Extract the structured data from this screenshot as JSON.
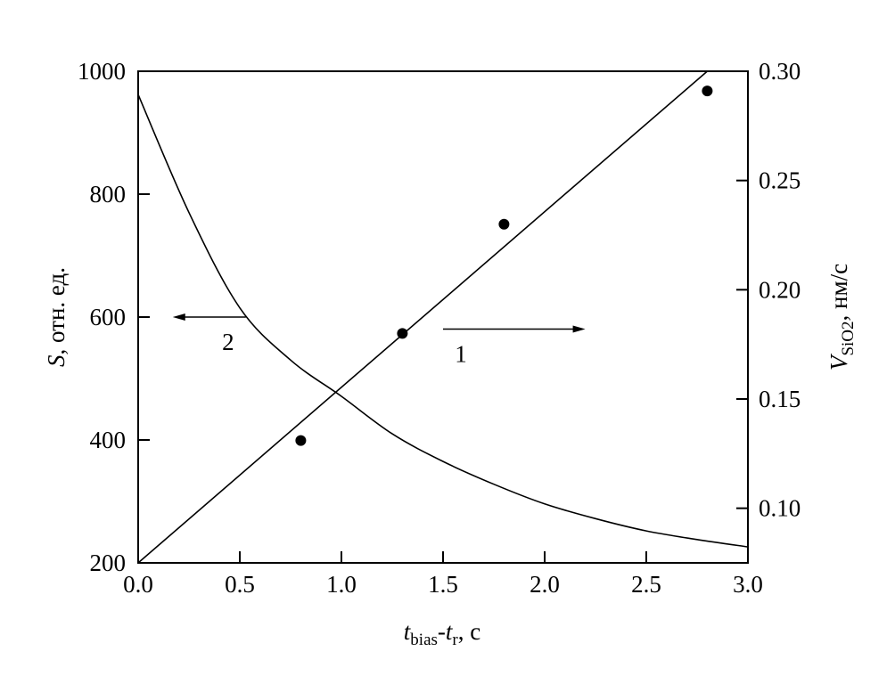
{
  "chart_data": {
    "type": "line",
    "xlabel": {
      "main": "t",
      "sub": "bias",
      "mid": "-t",
      "sub2": "r",
      "unit": ", с"
    },
    "ylabel_left": {
      "main": "S",
      "unit": ", отн. ед."
    },
    "ylabel_right": {
      "main": "V",
      "sub": "SiO2",
      "unit": ", нм/с"
    },
    "xlim": [
      0.0,
      3.0
    ],
    "ylim_left": [
      200,
      1000
    ],
    "ylim_right": [
      0.075,
      0.3
    ],
    "x_ticks": [
      "0.0",
      "0.5",
      "1.0",
      "1.5",
      "2.0",
      "2.5",
      "3.0"
    ],
    "y_left_ticks": [
      "200",
      "400",
      "600",
      "800",
      "1000"
    ],
    "y_right_ticks": [
      "0.10",
      "0.15",
      "0.20",
      "0.25",
      "0.30"
    ],
    "grid": false,
    "series": [
      {
        "name": "1",
        "axis": "right",
        "points": {
          "x": [
            0.8,
            1.3,
            1.8,
            2.8
          ],
          "y": [
            0.131,
            0.18,
            0.23,
            0.291
          ]
        },
        "fit_line": {
          "x": [
            0.0,
            2.8
          ],
          "y": [
            0.075,
            0.3
          ]
        }
      },
      {
        "name": "2",
        "axis": "left",
        "curve": {
          "x": [
            0.0,
            0.25,
            0.5,
            0.75,
            1.0,
            1.25,
            1.5,
            1.75,
            2.0,
            2.25,
            2.5,
            2.75,
            3.0
          ],
          "y": [
            962,
            770,
            615,
            530,
            471,
            410,
            365,
            328,
            296,
            272,
            252,
            238,
            226
          ]
        }
      }
    ],
    "annotations": [
      {
        "label": "1",
        "arrow": "right",
        "from_x": 1.5,
        "to_x": 2.2,
        "at_right_y": 0.182
      },
      {
        "label": "2",
        "arrow": "left",
        "from_x": 0.53,
        "to_x": 0.17,
        "at_left_y": 600
      }
    ],
    "colors": {
      "ink": "#000000",
      "background": "#ffffff"
    }
  }
}
